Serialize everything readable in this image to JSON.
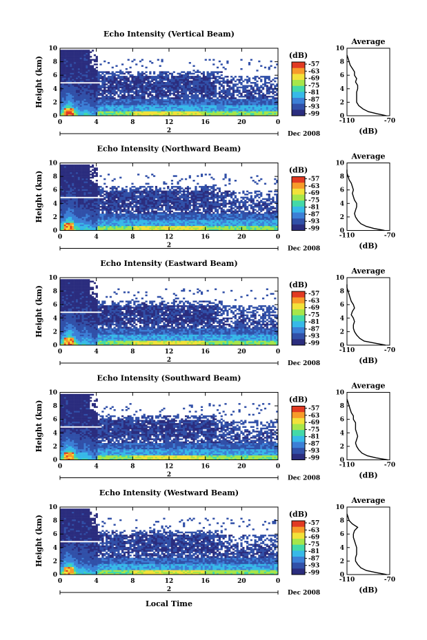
{
  "chart_data": [
    {
      "type": "heatmap",
      "title": "Echo Intensity (Vertical Beam)",
      "ylabel": "Height (km)",
      "x_ticks": [
        "0",
        "4",
        "8",
        "12",
        "16",
        "20",
        "0"
      ],
      "y_ticks": [
        "0",
        "2",
        "4",
        "6",
        "8",
        "10"
      ],
      "day_label": "2",
      "date_label": "Dec 2008",
      "colorbar_unit": "(dB)",
      "colorbar_ticks": [
        "-57",
        "-63",
        "-69",
        "-75",
        "-81",
        "-87",
        "-93",
        "-99"
      ],
      "avg_title": "Average",
      "avg_xlabel": "(dB)",
      "avg_ticks": [
        "-110",
        "-70"
      ],
      "avg_xlim": [
        -110,
        -70
      ],
      "avg_ylim": [
        0,
        10
      ],
      "avg_profile": {
        "height_km": [
          0.0,
          0.3,
          0.6,
          1.0,
          1.5,
          2.0,
          2.5,
          3.0,
          3.5,
          4.0,
          4.5,
          5.0,
          5.5,
          6.0,
          6.5,
          7.0,
          7.5,
          8.0,
          8.5,
          9.0
        ],
        "db": [
          -73,
          -82,
          -90,
          -95,
          -99,
          -101,
          -101,
          -101,
          -101,
          -100,
          -100,
          -102,
          -101,
          -103,
          -103,
          -105,
          -107,
          -108,
          -109,
          -110
        ]
      }
    },
    {
      "type": "heatmap",
      "title": "Echo Intensity (Northward Beam)",
      "ylabel": "Height (km)",
      "x_ticks": [
        "0",
        "4",
        "8",
        "12",
        "16",
        "20",
        "0"
      ],
      "y_ticks": [
        "0",
        "2",
        "4",
        "6",
        "8",
        "10"
      ],
      "day_label": "2",
      "date_label": "Dec 2008",
      "colorbar_unit": "(dB)",
      "colorbar_ticks": [
        "-57",
        "-63",
        "-69",
        "-75",
        "-81",
        "-87",
        "-93",
        "-99"
      ],
      "avg_title": "Average",
      "avg_xlabel": "(dB)",
      "avg_ticks": [
        "-110",
        "-70"
      ],
      "avg_xlim": [
        -110,
        -70
      ],
      "avg_ylim": [
        0,
        10
      ],
      "avg_profile": {
        "height_km": [
          0.0,
          0.3,
          0.6,
          1.0,
          1.5,
          2.0,
          2.5,
          3.0,
          3.5,
          4.0,
          4.5,
          5.0,
          5.5,
          6.0,
          6.5,
          7.0,
          7.5,
          8.0,
          8.5,
          9.0
        ],
        "db": [
          -75,
          -85,
          -92,
          -97,
          -100,
          -102,
          -103,
          -102,
          -101,
          -101,
          -103,
          -104,
          -105,
          -104,
          -105,
          -106,
          -108,
          -109,
          -110,
          -110
        ]
      }
    },
    {
      "type": "heatmap",
      "title": "Echo Intensity (Eastward Beam)",
      "ylabel": "Height (km)",
      "x_ticks": [
        "0",
        "4",
        "8",
        "12",
        "16",
        "20",
        "0"
      ],
      "y_ticks": [
        "0",
        "2",
        "4",
        "6",
        "8",
        "10"
      ],
      "day_label": "2",
      "date_label": "Dec 2008",
      "colorbar_unit": "(dB)",
      "colorbar_ticks": [
        "-57",
        "-63",
        "-69",
        "-75",
        "-81",
        "-87",
        "-93",
        "-99"
      ],
      "avg_title": "Average",
      "avg_xlabel": "(dB)",
      "avg_ticks": [
        "-110",
        "-70"
      ],
      "avg_xlim": [
        -110,
        -70
      ],
      "avg_ylim": [
        0,
        10
      ],
      "avg_profile": {
        "height_km": [
          0.0,
          0.3,
          0.6,
          1.0,
          1.5,
          2.0,
          2.5,
          3.0,
          3.5,
          4.0,
          4.5,
          5.0,
          5.5,
          6.0,
          6.5,
          7.0,
          7.5,
          8.0,
          8.5,
          9.0
        ],
        "db": [
          -74,
          -84,
          -94,
          -98,
          -101,
          -103,
          -104,
          -104,
          -103,
          -104,
          -106,
          -105,
          -103,
          -104,
          -106,
          -107,
          -108,
          -109,
          -110,
          -110
        ]
      }
    },
    {
      "type": "heatmap",
      "title": "Echo Intensity (Southward Beam)",
      "ylabel": "Height (km)",
      "x_ticks": [
        "0",
        "4",
        "8",
        "12",
        "16",
        "20",
        "0"
      ],
      "y_ticks": [
        "0",
        "2",
        "4",
        "6",
        "8",
        "10"
      ],
      "day_label": "2",
      "date_label": "Dec 2008",
      "colorbar_unit": "(dB)",
      "colorbar_ticks": [
        "-57",
        "-63",
        "-69",
        "-75",
        "-81",
        "-87",
        "-93",
        "-99"
      ],
      "avg_title": "Average",
      "avg_xlabel": "(dB)",
      "avg_ticks": [
        "-110",
        "-70"
      ],
      "avg_xlim": [
        -110,
        -70
      ],
      "avg_ylim": [
        0,
        10
      ],
      "avg_profile": {
        "height_km": [
          0.0,
          0.3,
          0.6,
          1.0,
          1.5,
          2.0,
          2.5,
          3.0,
          3.5,
          4.0,
          4.5,
          5.0,
          5.5,
          6.0,
          6.5,
          7.0,
          7.5,
          8.0,
          8.5,
          9.0
        ],
        "db": [
          -72,
          -83,
          -91,
          -96,
          -99,
          -101,
          -102,
          -101,
          -100,
          -101,
          -102,
          -102,
          -102,
          -104,
          -104,
          -106,
          -107,
          -108,
          -109,
          -110
        ]
      }
    },
    {
      "type": "heatmap",
      "title": "Echo Intensity (Westward Beam)",
      "ylabel": "Height (km)",
      "x_ticks": [
        "0",
        "4",
        "8",
        "12",
        "16",
        "20",
        "0"
      ],
      "y_ticks": [
        "0",
        "2",
        "4",
        "6",
        "8",
        "10"
      ],
      "day_label": "2",
      "date_label": "Dec 2008",
      "colorbar_unit": "(dB)",
      "colorbar_ticks": [
        "-57",
        "-63",
        "-69",
        "-75",
        "-81",
        "-87",
        "-93",
        "-99"
      ],
      "avg_title": "Average",
      "avg_xlabel": "(dB)",
      "avg_ticks": [
        "-110",
        "-70"
      ],
      "avg_xlim": [
        -110,
        -70
      ],
      "avg_ylim": [
        0,
        10
      ],
      "xlabel": "Local Time",
      "avg_profile": {
        "height_km": [
          0.0,
          0.3,
          0.6,
          1.0,
          1.5,
          2.0,
          2.5,
          3.0,
          3.5,
          4.0,
          4.5,
          5.0,
          5.5,
          6.0,
          6.5,
          7.0,
          7.5,
          8.0,
          8.5,
          9.0
        ],
        "db": [
          -73,
          -83,
          -92,
          -97,
          -100,
          -102,
          -102,
          -101,
          -101,
          -101,
          -102,
          -103,
          -104,
          -104,
          -103,
          -100,
          -105,
          -108,
          -109,
          -110
        ]
      }
    }
  ],
  "heatmap_pattern": {
    "x_range_hours": [
      0,
      24
    ],
    "y_range_km": [
      0,
      10
    ],
    "colormap": [
      "#2b2d7e",
      "#3150a8",
      "#3c7fd6",
      "#37b9e8",
      "#43d9a8",
      "#a6e64a",
      "#f2e23a",
      "#f79b2a",
      "#e13a22"
    ],
    "white_gap_height_km": 4.8
  }
}
